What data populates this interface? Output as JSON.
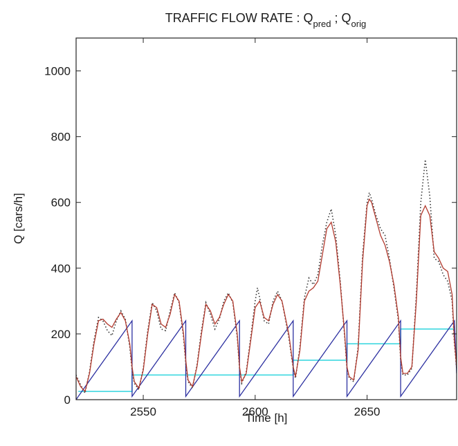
{
  "chart_data": {
    "type": "line",
    "title": {
      "prefix": "TRAFFIC FLOW RATE : Q",
      "sub1": "pred",
      "sep": " ; Q",
      "sub2": "orig"
    },
    "xlabel": "Time [h]",
    "ylabel": "Q [cars/h]",
    "xlim": [
      2520,
      2690
    ],
    "ylim": [
      0,
      1100
    ],
    "xticks": [
      2550,
      2600,
      2650
    ],
    "yticks": [
      0,
      200,
      400,
      600,
      800,
      1000
    ],
    "grid": false,
    "colors": {
      "pred": "#b23a2e",
      "orig": "#333333",
      "sawtooth": "#2b2fa0",
      "steps": "#3fd8e0"
    },
    "series": [
      {
        "key": "pred",
        "style": "solid",
        "points": [
          [
            2520,
            70
          ],
          [
            2522,
            40
          ],
          [
            2524,
            25
          ],
          [
            2526,
            80
          ],
          [
            2528,
            170
          ],
          [
            2530,
            240
          ],
          [
            2532,
            245
          ],
          [
            2534,
            230
          ],
          [
            2536,
            220
          ],
          [
            2538,
            245
          ],
          [
            2540,
            265
          ],
          [
            2542,
            240
          ],
          [
            2544,
            170
          ],
          [
            2545,
            100
          ],
          [
            2546,
            55
          ],
          [
            2548,
            35
          ],
          [
            2550,
            90
          ],
          [
            2552,
            200
          ],
          [
            2554,
            290
          ],
          [
            2556,
            280
          ],
          [
            2558,
            230
          ],
          [
            2560,
            220
          ],
          [
            2562,
            260
          ],
          [
            2564,
            320
          ],
          [
            2566,
            300
          ],
          [
            2568,
            200
          ],
          [
            2569,
            120
          ],
          [
            2570,
            60
          ],
          [
            2572,
            40
          ],
          [
            2574,
            100
          ],
          [
            2576,
            200
          ],
          [
            2578,
            290
          ],
          [
            2580,
            270
          ],
          [
            2582,
            230
          ],
          [
            2584,
            250
          ],
          [
            2586,
            290
          ],
          [
            2588,
            320
          ],
          [
            2590,
            300
          ],
          [
            2592,
            200
          ],
          [
            2593,
            100
          ],
          [
            2594,
            55
          ],
          [
            2596,
            80
          ],
          [
            2598,
            180
          ],
          [
            2600,
            280
          ],
          [
            2602,
            300
          ],
          [
            2604,
            250
          ],
          [
            2606,
            240
          ],
          [
            2608,
            290
          ],
          [
            2610,
            320
          ],
          [
            2612,
            300
          ],
          [
            2615,
            200
          ],
          [
            2617,
            100
          ],
          [
            2618,
            70
          ],
          [
            2620,
            150
          ],
          [
            2622,
            300
          ],
          [
            2624,
            330
          ],
          [
            2626,
            340
          ],
          [
            2628,
            360
          ],
          [
            2630,
            440
          ],
          [
            2632,
            520
          ],
          [
            2634,
            540
          ],
          [
            2636,
            480
          ],
          [
            2638,
            350
          ],
          [
            2640,
            200
          ],
          [
            2641,
            100
          ],
          [
            2642,
            70
          ],
          [
            2644,
            60
          ],
          [
            2646,
            150
          ],
          [
            2648,
            420
          ],
          [
            2650,
            590
          ],
          [
            2651,
            610
          ],
          [
            2652,
            600
          ],
          [
            2654,
            550
          ],
          [
            2656,
            500
          ],
          [
            2658,
            470
          ],
          [
            2660,
            420
          ],
          [
            2662,
            350
          ],
          [
            2664,
            250
          ],
          [
            2665,
            130
          ],
          [
            2666,
            80
          ],
          [
            2668,
            80
          ],
          [
            2670,
            100
          ],
          [
            2672,
            300
          ],
          [
            2674,
            560
          ],
          [
            2676,
            590
          ],
          [
            2678,
            560
          ],
          [
            2680,
            450
          ],
          [
            2682,
            430
          ],
          [
            2684,
            400
          ],
          [
            2686,
            390
          ],
          [
            2688,
            320
          ],
          [
            2689,
            180
          ],
          [
            2690,
            100
          ]
        ]
      },
      {
        "key": "orig",
        "style": "dotted",
        "points": [
          [
            2520,
            75
          ],
          [
            2522,
            45
          ],
          [
            2524,
            20
          ],
          [
            2526,
            85
          ],
          [
            2528,
            180
          ],
          [
            2530,
            250
          ],
          [
            2532,
            240
          ],
          [
            2534,
            210
          ],
          [
            2536,
            195
          ],
          [
            2538,
            240
          ],
          [
            2540,
            270
          ],
          [
            2542,
            245
          ],
          [
            2544,
            160
          ],
          [
            2545,
            90
          ],
          [
            2546,
            50
          ],
          [
            2548,
            30
          ],
          [
            2550,
            95
          ],
          [
            2552,
            210
          ],
          [
            2554,
            295
          ],
          [
            2556,
            270
          ],
          [
            2558,
            215
          ],
          [
            2560,
            210
          ],
          [
            2562,
            270
          ],
          [
            2564,
            325
          ],
          [
            2566,
            295
          ],
          [
            2568,
            190
          ],
          [
            2569,
            110
          ],
          [
            2570,
            55
          ],
          [
            2572,
            35
          ],
          [
            2574,
            105
          ],
          [
            2576,
            210
          ],
          [
            2578,
            295
          ],
          [
            2580,
            260
          ],
          [
            2582,
            215
          ],
          [
            2584,
            245
          ],
          [
            2586,
            300
          ],
          [
            2588,
            325
          ],
          [
            2590,
            295
          ],
          [
            2592,
            190
          ],
          [
            2593,
            95
          ],
          [
            2594,
            50
          ],
          [
            2596,
            85
          ],
          [
            2598,
            190
          ],
          [
            2600,
            300
          ],
          [
            2601,
            340
          ],
          [
            2602,
            310
          ],
          [
            2604,
            240
          ],
          [
            2606,
            230
          ],
          [
            2608,
            300
          ],
          [
            2610,
            330
          ],
          [
            2612,
            300
          ],
          [
            2615,
            190
          ],
          [
            2617,
            95
          ],
          [
            2618,
            65
          ],
          [
            2620,
            160
          ],
          [
            2622,
            310
          ],
          [
            2624,
            370
          ],
          [
            2626,
            350
          ],
          [
            2628,
            380
          ],
          [
            2630,
            470
          ],
          [
            2632,
            540
          ],
          [
            2634,
            580
          ],
          [
            2636,
            500
          ],
          [
            2638,
            360
          ],
          [
            2640,
            190
          ],
          [
            2641,
            95
          ],
          [
            2642,
            65
          ],
          [
            2644,
            55
          ],
          [
            2646,
            160
          ],
          [
            2648,
            440
          ],
          [
            2650,
            600
          ],
          [
            2651,
            630
          ],
          [
            2652,
            610
          ],
          [
            2654,
            560
          ],
          [
            2656,
            520
          ],
          [
            2658,
            500
          ],
          [
            2660,
            430
          ],
          [
            2662,
            340
          ],
          [
            2664,
            240
          ],
          [
            2665,
            120
          ],
          [
            2666,
            75
          ],
          [
            2668,
            75
          ],
          [
            2670,
            95
          ],
          [
            2672,
            320
          ],
          [
            2674,
            600
          ],
          [
            2676,
            730
          ],
          [
            2678,
            620
          ],
          [
            2680,
            430
          ],
          [
            2682,
            420
          ],
          [
            2684,
            380
          ],
          [
            2686,
            360
          ],
          [
            2688,
            300
          ],
          [
            2689,
            170
          ],
          [
            2690,
            95
          ]
        ]
      },
      {
        "key": "sawtooth",
        "style": "solid",
        "points": [
          [
            2520,
            0
          ],
          [
            2521,
            10
          ],
          [
            2545,
            240
          ],
          [
            2545,
            10
          ],
          [
            2569,
            240
          ],
          [
            2569,
            10
          ],
          [
            2593,
            240
          ],
          [
            2593,
            10
          ],
          [
            2617,
            240
          ],
          [
            2617,
            10
          ],
          [
            2641,
            240
          ],
          [
            2641,
            10
          ],
          [
            2665,
            240
          ],
          [
            2665,
            10
          ],
          [
            2689,
            240
          ],
          [
            2690,
            80
          ]
        ]
      },
      {
        "key": "steps",
        "style": "solid",
        "points": [
          [
            2521,
            25
          ],
          [
            2545,
            25
          ],
          [
            2545,
            75
          ],
          [
            2569,
            75
          ],
          [
            2593,
            75
          ],
          [
            2617,
            75
          ],
          [
            2617,
            120
          ],
          [
            2641,
            120
          ],
          [
            2641,
            170
          ],
          [
            2665,
            170
          ],
          [
            2665,
            215
          ],
          [
            2689,
            215
          ]
        ]
      }
    ]
  }
}
